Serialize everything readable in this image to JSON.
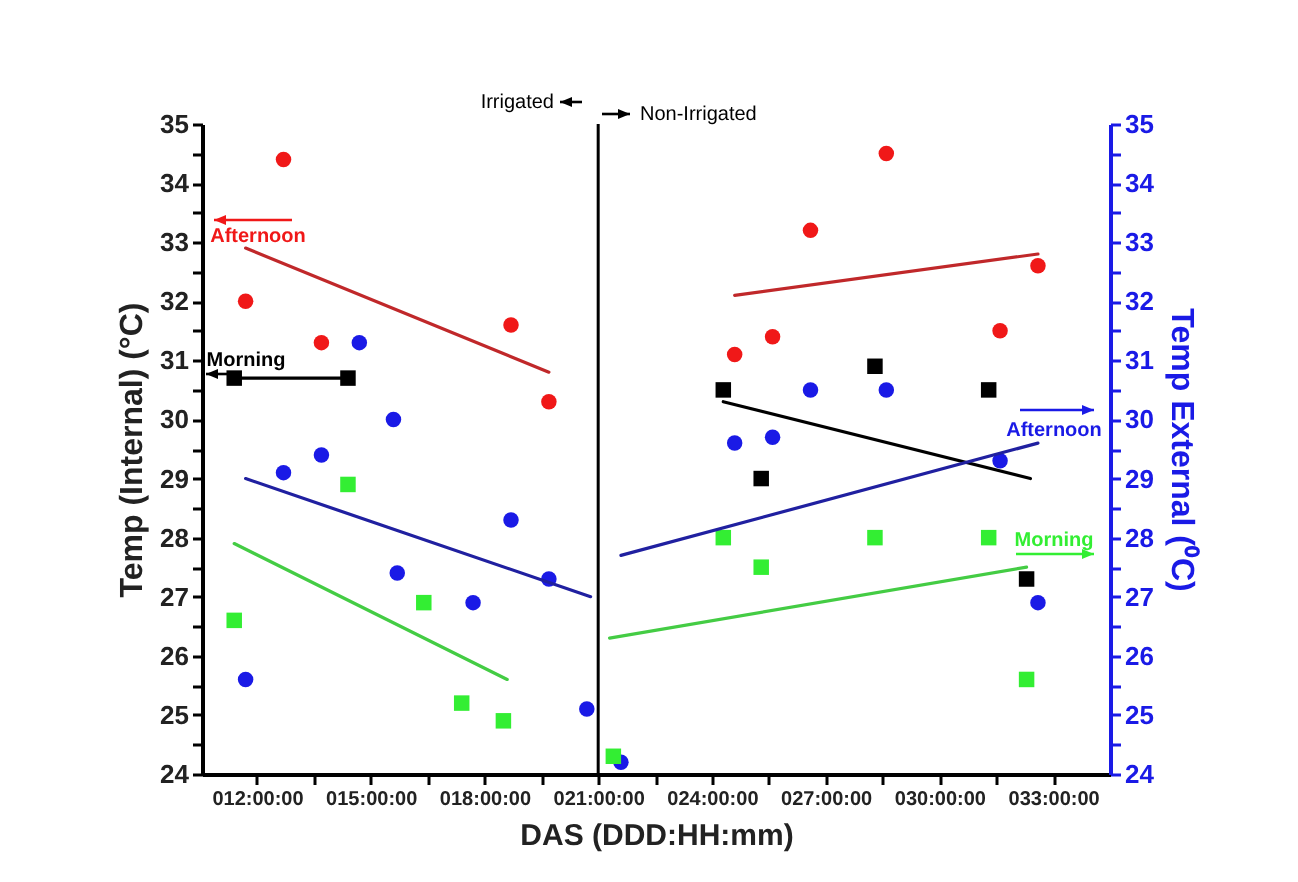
{
  "chart_data": {
    "type": "scatter",
    "xlabel": "DAS (DDD:HH:mm)",
    "ylabel": "Temp (Internal) (°C)",
    "y2label": "Temp External (⁰C)",
    "xlim": [
      10.55,
      34.5
    ],
    "xticks": [
      {
        "value": 12,
        "label": "012:00:00"
      },
      {
        "value": 13.5,
        "label": null
      },
      {
        "value": 15,
        "label": "015:00:00"
      },
      {
        "value": 16.5,
        "label": null
      },
      {
        "value": 18,
        "label": "018:00:00"
      },
      {
        "value": 19.5,
        "label": null
      },
      {
        "value": 21,
        "label": "021:00:00"
      },
      {
        "value": 22.5,
        "label": null
      },
      {
        "value": 24,
        "label": "024:00:00"
      },
      {
        "value": 25.5,
        "label": null
      },
      {
        "value": 27,
        "label": "027:00:00"
      },
      {
        "value": 28.5,
        "label": null
      },
      {
        "value": 30,
        "label": "030:00:00"
      },
      {
        "value": 31.5,
        "label": null
      },
      {
        "value": 33,
        "label": "033:00:00"
      }
    ],
    "ylim": [
      24,
      35
    ],
    "yticks": [
      24,
      {
        "value": 24.5,
        "label": null
      },
      25,
      {
        "value": 25.5,
        "label": null
      },
      26,
      {
        "value": 26.5,
        "label": null
      },
      27,
      {
        "value": 27.5,
        "label": null
      },
      28,
      {
        "value": 28.5,
        "label": null
      },
      29,
      {
        "value": 29.5,
        "label": null
      },
      30,
      {
        "value": 30.5,
        "label": null
      },
      31,
      {
        "value": 31.5,
        "label": null
      },
      32,
      {
        "value": 32.5,
        "label": null
      },
      33,
      {
        "value": 33.5,
        "label": null
      },
      34,
      {
        "value": 34.5,
        "label": null
      },
      35
    ],
    "y2lim": [
      24,
      35
    ],
    "y2ticks": [
      24,
      {
        "value": 24.5,
        "label": null
      },
      25,
      {
        "value": 25.5,
        "label": null
      },
      26,
      {
        "value": 26.5,
        "label": null
      },
      27,
      {
        "value": 27.5,
        "label": null
      },
      28,
      {
        "value": 28.5,
        "label": null
      },
      29,
      {
        "value": 29.5,
        "label": null
      },
      30,
      {
        "value": 30.5,
        "label": null
      },
      31,
      {
        "value": 31.5,
        "label": null
      },
      32,
      {
        "value": 32.5,
        "label": null
      },
      33,
      {
        "value": 33.5,
        "label": null
      },
      34,
      {
        "value": 34.5,
        "label": null
      },
      35
    ],
    "grid": false,
    "legend": "top",
    "series": [
      {
        "name": "Afternoon",
        "type": "scatter",
        "marker": "circle",
        "color": "#f01818",
        "axis": "y",
        "x": [
          11.7,
          12.7,
          13.7,
          18.7,
          19.7,
          24.6,
          25.6,
          26.6,
          28.6,
          31.6,
          32.6
        ],
        "values": [
          32.0,
          34.4,
          31.3,
          31.6,
          30.3,
          31.1,
          31.4,
          33.2,
          34.5,
          31.5,
          32.6
        ]
      },
      {
        "name": "Morning",
        "type": "scatter",
        "marker": "square",
        "color": "#000000",
        "axis": "y",
        "x": [
          11.4,
          14.4,
          24.3,
          25.3,
          28.3,
          31.3,
          32.3
        ],
        "values": [
          30.7,
          30.7,
          30.5,
          29.0,
          30.9,
          30.5,
          27.3
        ]
      },
      {
        "name": "Afternoon",
        "type": "scatter",
        "marker": "circle",
        "color": "#1a1ae6",
        "axis": "y2",
        "x": [
          11.7,
          12.7,
          13.7,
          14.7,
          15.6,
          15.7,
          17.7,
          18.7,
          19.7,
          20.7,
          21.6,
          24.6,
          25.6,
          26.6,
          28.6,
          31.6,
          32.6
        ],
        "values": [
          25.6,
          29.1,
          29.4,
          31.3,
          30.0,
          27.4,
          26.9,
          28.3,
          27.3,
          25.1,
          24.2,
          29.6,
          29.7,
          30.5,
          30.5,
          29.3,
          26.9
        ]
      },
      {
        "name": "Morning",
        "type": "scatter",
        "marker": "square",
        "color": "#33ee33",
        "axis": "y2",
        "x": [
          11.4,
          14.4,
          16.4,
          17.4,
          18.5,
          21.4,
          24.3,
          25.3,
          28.3,
          31.3,
          32.3
        ],
        "values": [
          26.6,
          28.9,
          26.9,
          25.2,
          24.9,
          24.3,
          28.0,
          27.5,
          28.0,
          28.0,
          25.6
        ]
      },
      {
        "type": "line",
        "color": "#c0282a",
        "axis": "y",
        "x": [
          11.7,
          19.7
        ],
        "values": [
          32.9,
          30.8
        ]
      },
      {
        "type": "line",
        "color": "#c0282a",
        "axis": "y",
        "x": [
          24.6,
          32.6
        ],
        "values": [
          32.1,
          32.8
        ]
      },
      {
        "type": "line",
        "color": "#000000",
        "axis": "y",
        "x": [
          24.3,
          32.4
        ],
        "values": [
          30.3,
          29.0
        ]
      },
      {
        "type": "line",
        "color": "#000000",
        "axis": "y",
        "x": [
          11.4,
          14.4
        ],
        "values": [
          30.7,
          30.7
        ]
      },
      {
        "type": "line",
        "color": "#2020a0",
        "axis": "y2",
        "x": [
          11.7,
          20.8
        ],
        "values": [
          29.0,
          27.0
        ]
      },
      {
        "type": "line",
        "color": "#2020a0",
        "axis": "y2",
        "x": [
          21.6,
          32.6
        ],
        "values": [
          27.7,
          29.6
        ]
      },
      {
        "type": "line",
        "color": "#44cc44",
        "axis": "y2",
        "x": [
          11.4,
          18.6
        ],
        "values": [
          27.9,
          25.6
        ]
      },
      {
        "type": "line",
        "color": "#44cc44",
        "axis": "y2",
        "x": [
          21.3,
          32.3
        ],
        "values": [
          26.3,
          27.5
        ]
      }
    ],
    "ref_lines": [
      {
        "axis": "x",
        "value": 21,
        "color": "#000000"
      }
    ],
    "annotations": [
      "Irrigated",
      "Non-Irrigated"
    ]
  }
}
